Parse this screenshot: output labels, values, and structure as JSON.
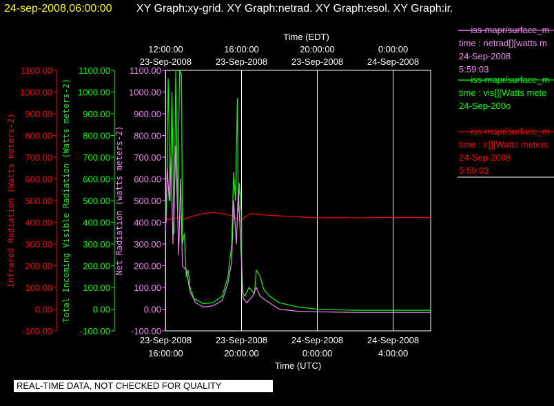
{
  "header": {
    "timestamp": "24-sep-2008,06:00:00",
    "titles": "XY Graph:xy-grid.  XY Graph:netrad.  XY Graph:esol.  XY Graph:ir."
  },
  "banner": "REAL-TIME DATA, NOT CHECKED FOR QUALITY",
  "colors": {
    "background": "#000000",
    "infrared": "#ff0000",
    "visible": "#00ff00",
    "net": "#ee88ee",
    "axis": "#ffffff"
  },
  "chart_data": {
    "type": "line",
    "top_axis": {
      "title": "Time (EDT)",
      "ticks": [
        {
          "time": "12:00:00",
          "date": "23-Sep-2008"
        },
        {
          "time": "16:00:00",
          "date": "23-Sep-2008"
        },
        {
          "time": "20:00:00",
          "date": "23-Sep-2008"
        },
        {
          "time": "0:00:00",
          "date": "24-Sep-2008"
        }
      ]
    },
    "bottom_axis": {
      "title": "Time (UTC)",
      "ticks": [
        {
          "time": "16:00:00",
          "date": "23-Sep-2008"
        },
        {
          "time": "20:00:00",
          "date": "23-Sep-2008"
        },
        {
          "time": "0:00:00",
          "date": "24-Sep-2008"
        },
        {
          "time": "4:00:00",
          "date": "24-Sep-2008"
        }
      ]
    },
    "x_units": "hours after 23-Sep-2008 16:00 UTC",
    "xlim": [
      0,
      14
    ],
    "y_axes": [
      {
        "label": "Infrared Radiation (Watts meters-2)",
        "ticks": [
          "1100.00",
          "1000.00",
          "900.00",
          "800.00",
          "700.00",
          "600.00",
          "500.00",
          "400.00",
          "300.00",
          "200.00",
          "100.00",
          "0.00",
          "-100.00"
        ]
      },
      {
        "label": "Total Incoming Visible Radiation (Watts meters-2)",
        "ticks": [
          "1100.00",
          "1000.00",
          "900.00",
          "800.00",
          "700.00",
          "600.00",
          "500.00",
          "400.00",
          "300.00",
          "200.00",
          "100.00",
          "0.00",
          "-100.00"
        ]
      },
      {
        "label": "Net Radiation (watts meters-2)",
        "ticks": [
          "1100.00",
          "1000.00",
          "900.00",
          "800.00",
          "700.00",
          "600.00",
          "500.00",
          "400.00",
          "300.00",
          "200.00",
          "100.00",
          "0.00",
          "-100.00"
        ]
      }
    ],
    "ylim": [
      -100,
      1100
    ],
    "grid": "vertical",
    "series": [
      {
        "name": "ir",
        "points": [
          [
            0,
            410
          ],
          [
            0.3,
            415
          ],
          [
            0.6,
            420
          ],
          [
            0.8,
            425
          ],
          [
            1,
            415
          ],
          [
            1.5,
            430
          ],
          [
            2,
            440
          ],
          [
            2.5,
            445
          ],
          [
            3,
            440
          ],
          [
            3.5,
            430
          ],
          [
            3.8,
            415
          ],
          [
            4,
            405
          ],
          [
            4.2,
            425
          ],
          [
            4.5,
            440
          ],
          [
            5,
            435
          ],
          [
            6,
            430
          ],
          [
            7,
            425
          ],
          [
            8,
            420
          ],
          [
            9,
            422
          ],
          [
            10,
            420
          ],
          [
            11,
            422
          ],
          [
            12,
            422
          ],
          [
            13,
            422
          ],
          [
            14,
            422
          ]
        ]
      },
      {
        "name": "vis",
        "points": [
          [
            0,
            500
          ],
          [
            0.05,
            400
          ],
          [
            0.15,
            1060
          ],
          [
            0.25,
            500
          ],
          [
            0.35,
            1000
          ],
          [
            0.45,
            350
          ],
          [
            0.55,
            1100
          ],
          [
            0.65,
            450
          ],
          [
            0.75,
            1100
          ],
          [
            0.85,
            1080
          ],
          [
            0.9,
            300
          ],
          [
            1,
            350
          ],
          [
            1.1,
            150
          ],
          [
            1.2,
            180
          ],
          [
            1.3,
            100
          ],
          [
            1.5,
            50
          ],
          [
            2,
            25
          ],
          [
            2.5,
            30
          ],
          [
            3,
            60
          ],
          [
            3.3,
            150
          ],
          [
            3.5,
            300
          ],
          [
            3.6,
            630
          ],
          [
            3.7,
            500
          ],
          [
            3.8,
            970
          ],
          [
            3.85,
            450
          ],
          [
            3.9,
            580
          ],
          [
            4,
            450
          ],
          [
            4.05,
            80
          ],
          [
            4.2,
            60
          ],
          [
            4.4,
            100
          ],
          [
            4.7,
            70
          ],
          [
            4.8,
            180
          ],
          [
            5,
            150
          ],
          [
            5.2,
            90
          ],
          [
            5.5,
            60
          ],
          [
            6,
            30
          ],
          [
            7,
            10
          ],
          [
            8,
            0
          ],
          [
            10,
            -5
          ],
          [
            14,
            -5
          ]
        ]
      },
      {
        "name": "netrad",
        "points": [
          [
            0,
            350
          ],
          [
            0.1,
            650
          ],
          [
            0.2,
            500
          ],
          [
            0.3,
            700
          ],
          [
            0.4,
            300
          ],
          [
            0.55,
            750
          ],
          [
            0.7,
            250
          ],
          [
            0.8,
            600
          ],
          [
            0.9,
            200
          ],
          [
            1.1,
            180
          ],
          [
            1.3,
            80
          ],
          [
            1.6,
            30
          ],
          [
            2,
            10
          ],
          [
            2.5,
            15
          ],
          [
            3,
            40
          ],
          [
            3.3,
            120
          ],
          [
            3.5,
            220
          ],
          [
            3.6,
            500
          ],
          [
            3.75,
            300
          ],
          [
            3.85,
            550
          ],
          [
            4,
            250
          ],
          [
            4.1,
            50
          ],
          [
            4.3,
            30
          ],
          [
            4.6,
            60
          ],
          [
            4.8,
            100
          ],
          [
            5,
            60
          ],
          [
            5.3,
            40
          ],
          [
            6,
            0
          ],
          [
            7,
            -10
          ],
          [
            8,
            -12
          ],
          [
            10,
            -15
          ],
          [
            14,
            -15
          ]
        ]
      }
    ],
    "legend": [
      {
        "source": "iss-mapr/surface_m",
        "var": "time : netrad[][watts m",
        "date": "24-Sep-2008",
        "time": "5:59:03",
        "color": "#ee88ee"
      },
      {
        "source": "iss-mapr/surface_m",
        "var": "time : vis[][Watts mete",
        "date": "24-Sep-200o",
        "time": "",
        "color": "#00ff00"
      },
      {
        "source": "iss-mapr/surface_m",
        "var": "time : ir[][Watts meters",
        "date": "24-Sep-2008",
        "time": "5:59:03",
        "color": "#ff0000"
      }
    ]
  }
}
